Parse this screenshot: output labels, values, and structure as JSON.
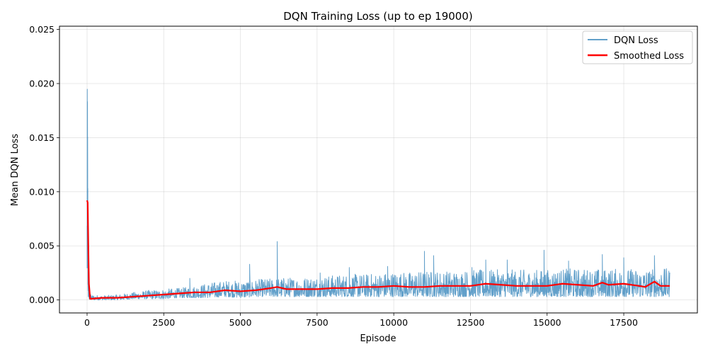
{
  "chart_data": {
    "type": "line",
    "title": "DQN Training Loss (up to ep 19000)",
    "xlabel": "Episode",
    "ylabel": "Mean DQN Loss",
    "xlim": [
      -900,
      19900
    ],
    "ylim": [
      -0.0012,
      0.0253
    ],
    "xticks": [
      0,
      2500,
      5000,
      7500,
      10000,
      12500,
      15000,
      17500
    ],
    "xtick_labels": [
      "0",
      "2500",
      "5000",
      "7500",
      "10000",
      "12500",
      "15000",
      "17500"
    ],
    "yticks": [
      0.0,
      0.005,
      0.01,
      0.015,
      0.02,
      0.025
    ],
    "ytick_labels": [
      "0.000",
      "0.005",
      "0.010",
      "0.015",
      "0.020",
      "0.025"
    ],
    "grid": true,
    "legend_position": "top-right",
    "colors": {
      "raw": "#1f77b4",
      "smoothed": "#ff0000"
    },
    "series": [
      {
        "name": "DQN Loss",
        "style": "noisy-band",
        "x": [
          0,
          10,
          20,
          30,
          50,
          100,
          500,
          1000,
          1500,
          2000,
          2500,
          3000,
          3500,
          4000,
          4500,
          5000,
          5500,
          6000,
          6500,
          7000,
          7500,
          8000,
          8500,
          9000,
          9500,
          10000,
          10500,
          11000,
          11500,
          12000,
          12500,
          13000,
          13500,
          14000,
          14500,
          15000,
          15500,
          16000,
          16500,
          17000,
          17500,
          18000,
          18500,
          19000
        ],
        "low": [
          0.0005,
          0.002,
          0.001,
          0.0003,
          0.0001,
          0.0,
          0.0,
          0.0,
          0.0001,
          0.0001,
          0.0001,
          0.0002,
          0.0002,
          0.0002,
          0.0003,
          0.0002,
          0.0003,
          0.0003,
          0.0003,
          0.0003,
          0.0003,
          0.0003,
          0.0003,
          0.0003,
          0.0003,
          0.0003,
          0.0003,
          0.0003,
          0.0003,
          0.0003,
          0.0003,
          0.0003,
          0.0003,
          0.0003,
          0.0003,
          0.0003,
          0.0003,
          0.0003,
          0.0003,
          0.0003,
          0.0003,
          0.0003,
          0.0003,
          0.0003
        ],
        "high": [
          0.013,
          0.024,
          0.019,
          0.008,
          0.001,
          0.0005,
          0.0004,
          0.0005,
          0.0007,
          0.0009,
          0.001,
          0.0011,
          0.0013,
          0.0016,
          0.0018,
          0.0018,
          0.0019,
          0.002,
          0.0021,
          0.0021,
          0.0022,
          0.0023,
          0.0024,
          0.0024,
          0.0025,
          0.0026,
          0.0026,
          0.0027,
          0.0027,
          0.0027,
          0.0028,
          0.0028,
          0.0028,
          0.0028,
          0.0028,
          0.0028,
          0.0029,
          0.0029,
          0.0029,
          0.0029,
          0.0029,
          0.0029,
          0.0029,
          0.0029
        ],
        "spikes": [
          [
            3350,
            0.002
          ],
          [
            5300,
            0.0033
          ],
          [
            6200,
            0.0054
          ],
          [
            7600,
            0.0025
          ],
          [
            8550,
            0.003
          ],
          [
            9800,
            0.0031
          ],
          [
            11000,
            0.0045
          ],
          [
            11300,
            0.0041
          ],
          [
            12550,
            0.003
          ],
          [
            13000,
            0.0037
          ],
          [
            13700,
            0.0037
          ],
          [
            14900,
            0.0046
          ],
          [
            15700,
            0.0036
          ],
          [
            16800,
            0.0042
          ],
          [
            17500,
            0.0039
          ],
          [
            18500,
            0.0041
          ]
        ]
      },
      {
        "name": "Smoothed Loss",
        "style": "line",
        "x": [
          0,
          20,
          40,
          60,
          100,
          500,
          1000,
          1500,
          2000,
          2500,
          3000,
          3500,
          4000,
          4500,
          5000,
          5500,
          6000,
          6200,
          6500,
          7000,
          7500,
          8000,
          8500,
          9000,
          9500,
          10000,
          10500,
          11000,
          11500,
          12000,
          12500,
          13000,
          13500,
          14000,
          14500,
          15000,
          15500,
          16000,
          16500,
          16800,
          17000,
          17500,
          18000,
          18200,
          18500,
          18700,
          19000
        ],
        "y": [
          0.0092,
          0.009,
          0.005,
          0.0015,
          0.0001,
          0.0002,
          0.0002,
          0.0003,
          0.0004,
          0.0005,
          0.0006,
          0.0007,
          0.0007,
          0.0009,
          0.0008,
          0.0009,
          0.0011,
          0.0012,
          0.001,
          0.001,
          0.001,
          0.0011,
          0.0011,
          0.0012,
          0.0012,
          0.0013,
          0.0012,
          0.0012,
          0.0013,
          0.0013,
          0.0013,
          0.0015,
          0.0014,
          0.0013,
          0.0013,
          0.0013,
          0.0015,
          0.0014,
          0.0013,
          0.0016,
          0.0014,
          0.0015,
          0.0013,
          0.0012,
          0.0017,
          0.0013,
          0.0013
        ]
      }
    ]
  }
}
